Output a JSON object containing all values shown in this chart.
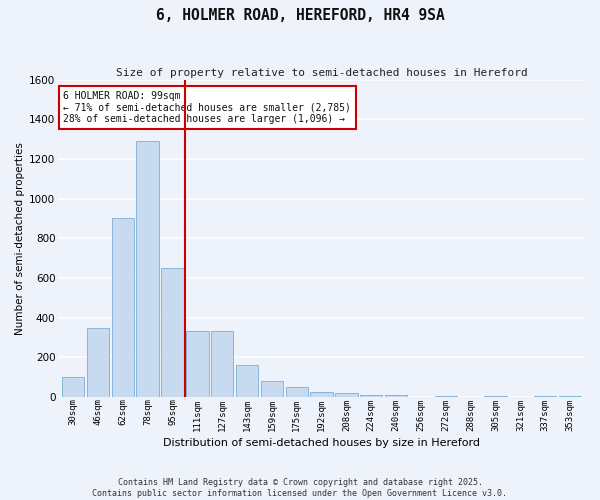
{
  "title": "6, HOLMER ROAD, HEREFORD, HR4 9SA",
  "subtitle": "Size of property relative to semi-detached houses in Hereford",
  "xlabel": "Distribution of semi-detached houses by size in Hereford",
  "ylabel": "Number of semi-detached properties",
  "bar_labels": [
    "30sqm",
    "46sqm",
    "62sqm",
    "78sqm",
    "95sqm",
    "111sqm",
    "127sqm",
    "143sqm",
    "159sqm",
    "175sqm",
    "192sqm",
    "208sqm",
    "224sqm",
    "240sqm",
    "256sqm",
    "272sqm",
    "288sqm",
    "305sqm",
    "321sqm",
    "337sqm",
    "353sqm"
  ],
  "bar_values": [
    100,
    350,
    900,
    1290,
    650,
    330,
    330,
    160,
    80,
    50,
    25,
    20,
    10,
    10,
    0,
    5,
    0,
    5,
    0,
    5,
    5
  ],
  "bar_color": "#c8daf0",
  "bar_edge_color": "#7bafd4",
  "vline_color": "#cc0000",
  "annotation_title": "6 HOLMER ROAD: 99sqm",
  "annotation_line1": "← 71% of semi-detached houses are smaller (2,785)",
  "annotation_line2": "28% of semi-detached houses are larger (1,096) →",
  "annotation_box_edge_color": "#cc0000",
  "ylim": [
    0,
    1600
  ],
  "yticks": [
    0,
    200,
    400,
    600,
    800,
    1000,
    1200,
    1400,
    1600
  ],
  "footer_line1": "Contains HM Land Registry data © Crown copyright and database right 2025.",
  "footer_line2": "Contains public sector information licensed under the Open Government Licence v3.0.",
  "bg_color": "#eef2fb",
  "plot_bg_color": "#eef2fb",
  "grid_color": "#ffffff"
}
